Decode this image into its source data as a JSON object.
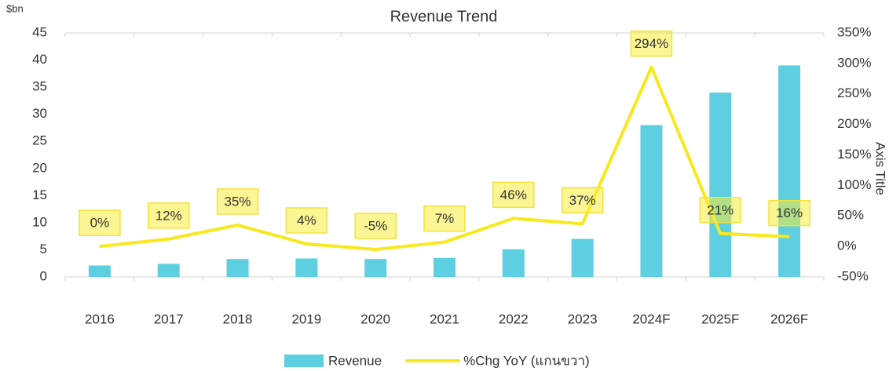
{
  "chart_data": {
    "type": "bar+line",
    "title": "Revenue Trend",
    "y_unit": "$bn",
    "y2_title": "Axis Title",
    "categories": [
      "2016",
      "2017",
      "2018",
      "2019",
      "2020",
      "2021",
      "2022",
      "2023",
      "2024F",
      "2025F",
      "2026F"
    ],
    "series": [
      {
        "name": "Revenue",
        "type": "bar",
        "color": "#5ecfe0",
        "values": [
          2.1,
          2.4,
          3.3,
          3.4,
          3.3,
          3.5,
          5.1,
          7.0,
          28,
          34,
          39
        ]
      },
      {
        "name": "%Chg YoY (แกนขวา)",
        "type": "line",
        "axis": "y2",
        "color": "#f8e81c",
        "values": [
          0,
          12,
          35,
          4,
          -5,
          7,
          46,
          37,
          294,
          21,
          16
        ],
        "value_labels": [
          "0%",
          "12%",
          "35%",
          "4%",
          "-5%",
          "7%",
          "46%",
          "37%",
          "294%",
          "21%",
          "16%"
        ]
      }
    ],
    "ylim": [
      0,
      45
    ],
    "yticks": [
      0,
      5,
      10,
      15,
      20,
      25,
      30,
      35,
      40,
      45
    ],
    "y2lim": [
      -50,
      350
    ],
    "y2ticks": [
      {
        "value": -50,
        "label": "-50%"
      },
      {
        "value": 0,
        "label": "0%"
      },
      {
        "value": 50,
        "label": "50%"
      },
      {
        "value": 100,
        "label": "100%"
      },
      {
        "value": 150,
        "label": "150%"
      },
      {
        "value": 200,
        "label": "200%"
      },
      {
        "value": 250,
        "label": "250%"
      },
      {
        "value": 300,
        "label": "300%"
      },
      {
        "value": 350,
        "label": "350%"
      }
    ],
    "legend": "bottom"
  }
}
